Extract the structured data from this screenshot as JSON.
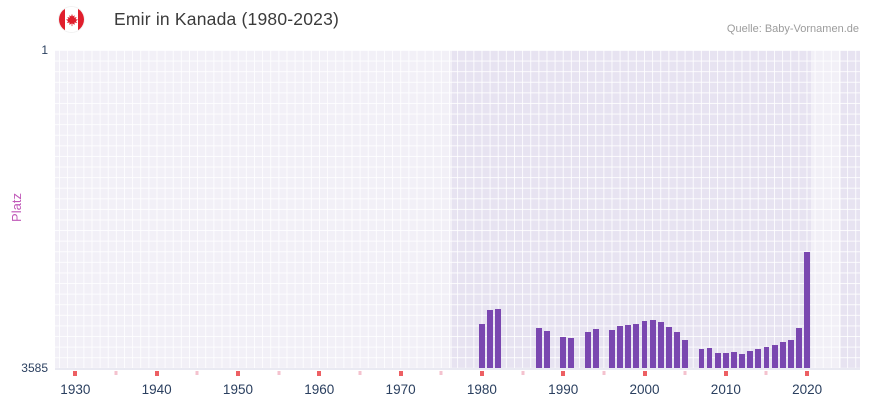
{
  "header": {
    "title": "Emir in Kanada (1980-2023)",
    "source": "Quelle: Baby-Vornamen.de"
  },
  "chart_data": {
    "type": "bar",
    "title": "Emir in Kanada (1980-2023)",
    "xlabel": "",
    "ylabel": "Platz",
    "legend": "none",
    "grid": true,
    "y_axis": {
      "min": 1,
      "max": 3585,
      "inverted": true,
      "top_tick": "1",
      "bottom_tick": "3585"
    },
    "x_axis": {
      "range": [
        1927.5,
        2026.5
      ],
      "major_ticks": [
        1930,
        1940,
        1950,
        1960,
        1970,
        1980,
        1990,
        2000,
        2010,
        2020
      ],
      "minor_ticks": [
        1935,
        1945,
        1955,
        1965,
        1975,
        1985,
        1995,
        2005,
        2015
      ]
    },
    "bar_width_years": 0.72,
    "bars": [
      {
        "year": 1980,
        "rank": 3090
      },
      {
        "year": 1981,
        "rank": 2930
      },
      {
        "year": 1982,
        "rank": 2915
      },
      {
        "year": 1987,
        "rank": 3130
      },
      {
        "year": 1988,
        "rank": 3170
      },
      {
        "year": 1990,
        "rank": 3230
      },
      {
        "year": 1991,
        "rank": 3245
      },
      {
        "year": 1993,
        "rank": 3175
      },
      {
        "year": 1994,
        "rank": 3150
      },
      {
        "year": 1996,
        "rank": 3155
      },
      {
        "year": 1997,
        "rank": 3115
      },
      {
        "year": 1998,
        "rank": 3095
      },
      {
        "year": 1999,
        "rank": 3085
      },
      {
        "year": 2000,
        "rank": 3055
      },
      {
        "year": 2001,
        "rank": 3045
      },
      {
        "year": 2002,
        "rank": 3065
      },
      {
        "year": 2003,
        "rank": 3120
      },
      {
        "year": 2004,
        "rank": 3180
      },
      {
        "year": 2005,
        "rank": 3270
      },
      {
        "year": 2007,
        "rank": 3370
      },
      {
        "year": 2008,
        "rank": 3355
      },
      {
        "year": 2009,
        "rank": 3420
      },
      {
        "year": 2010,
        "rank": 3415
      },
      {
        "year": 2011,
        "rank": 3400
      },
      {
        "year": 2012,
        "rank": 3425
      },
      {
        "year": 2013,
        "rank": 3390
      },
      {
        "year": 2014,
        "rank": 3370
      },
      {
        "year": 2015,
        "rank": 3345
      },
      {
        "year": 2016,
        "rank": 3320
      },
      {
        "year": 2017,
        "rank": 3295
      },
      {
        "year": 2018,
        "rank": 3270
      },
      {
        "year": 2019,
        "rank": 3130
      },
      {
        "year": 2020,
        "rank": 2280
      }
    ],
    "shaded_regions": [
      {
        "from": 1927.5,
        "to": 1976.3
      },
      {
        "from": 2020.45,
        "to": 2024.2
      }
    ],
    "colors": {
      "bar": "#7a47b0",
      "plot_bg": "#e7e3f1",
      "grid": "rgba(255,255,255,0.85)",
      "region_overlay": "rgba(255,255,255,0.45)",
      "axis_label": "#2a3f5f",
      "y_title": "#c058b8",
      "tick_major": "#ed5f63",
      "tick_minor": "#f4c2ce",
      "flag_red": "#e01e2c"
    }
  }
}
